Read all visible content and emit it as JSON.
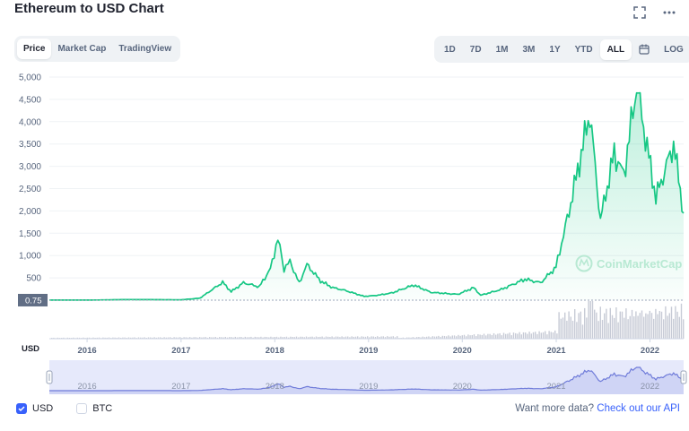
{
  "header": {
    "title": "Ethereum to USD Chart",
    "fullscreen_icon": "fullscreen-icon",
    "more_icon": "more-dots-icon"
  },
  "view_tabs": [
    {
      "label": "Price",
      "active": true
    },
    {
      "label": "Market Cap",
      "active": false
    },
    {
      "label": "TradingView",
      "active": false
    }
  ],
  "range_tabs": [
    {
      "label": "1D",
      "active": false
    },
    {
      "label": "7D",
      "active": false
    },
    {
      "label": "1M",
      "active": false
    },
    {
      "label": "3M",
      "active": false
    },
    {
      "label": "1Y",
      "active": false
    },
    {
      "label": "YTD",
      "active": false
    },
    {
      "label": "ALL",
      "active": true
    }
  ],
  "calendar_icon": "calendar-icon",
  "log_label": "LOG",
  "watermark": "CoinMarketCap",
  "colors": {
    "line": "#16c784",
    "fill": "#16c784",
    "volume": "#c7cbd6",
    "navigator_line": "#6f7bd9",
    "navigator_fill": "#e6e9fb",
    "accent": "#3861fb",
    "baseline_label": "#616e85"
  },
  "footer": {
    "options": [
      {
        "label": "USD",
        "checked": true
      },
      {
        "label": "BTC",
        "checked": false
      }
    ],
    "api_prefix": "Want more data?",
    "api_link": "Check out our API"
  },
  "chart_data": {
    "type": "area",
    "title": "Ethereum to USD Chart",
    "currency_label": "USD",
    "baseline_value": 0.75,
    "baseline_label": "0.75",
    "ylim": [
      0,
      5000
    ],
    "y_ticks": [
      500,
      1000,
      1500,
      2000,
      2500,
      3000,
      3500,
      4000,
      4500,
      5000
    ],
    "y_tick_labels": [
      "500",
      "1,000",
      "1,500",
      "2,000",
      "2,500",
      "3,000",
      "3,500",
      "4,000",
      "4,500",
      "5,000"
    ],
    "x_range": [
      "2015-08-07",
      "2022-05-12"
    ],
    "x_tick_labels": [
      "2016",
      "2017",
      "2018",
      "2019",
      "2020",
      "2021",
      "2022"
    ],
    "grid": true,
    "series": [
      {
        "name": "Price",
        "points": [
          [
            "2015-08-07",
            2.8
          ],
          [
            "2016-01-01",
            1.0
          ],
          [
            "2016-06-15",
            14
          ],
          [
            "2017-01-01",
            8
          ],
          [
            "2017-03-15",
            45
          ],
          [
            "2017-06-12",
            400
          ],
          [
            "2017-07-15",
            190
          ],
          [
            "2017-09-01",
            390
          ],
          [
            "2017-11-01",
            300
          ],
          [
            "2017-12-15",
            700
          ],
          [
            "2018-01-13",
            1390
          ],
          [
            "2018-02-06",
            700
          ],
          [
            "2018-03-01",
            870
          ],
          [
            "2018-04-06",
            380
          ],
          [
            "2018-05-06",
            800
          ],
          [
            "2018-06-28",
            430
          ],
          [
            "2018-08-15",
            280
          ],
          [
            "2018-10-01",
            220
          ],
          [
            "2018-12-15",
            85
          ],
          [
            "2019-02-01",
            107
          ],
          [
            "2019-04-01",
            160
          ],
          [
            "2019-06-26",
            340
          ],
          [
            "2019-09-01",
            175
          ],
          [
            "2019-12-15",
            130
          ],
          [
            "2020-02-14",
            280
          ],
          [
            "2020-03-13",
            110
          ],
          [
            "2020-06-01",
            240
          ],
          [
            "2020-09-01",
            470
          ],
          [
            "2020-11-01",
            390
          ],
          [
            "2020-12-31",
            740
          ],
          [
            "2021-02-20",
            2000
          ],
          [
            "2021-05-12",
            4200
          ],
          [
            "2021-06-22",
            1800
          ],
          [
            "2021-08-15",
            3300
          ],
          [
            "2021-09-21",
            2800
          ],
          [
            "2021-11-10",
            4800
          ],
          [
            "2022-01-24",
            2300
          ],
          [
            "2022-04-03",
            3500
          ],
          [
            "2022-05-12",
            1950
          ]
        ]
      }
    ],
    "volume_note": "relative trading volume bars"
  }
}
